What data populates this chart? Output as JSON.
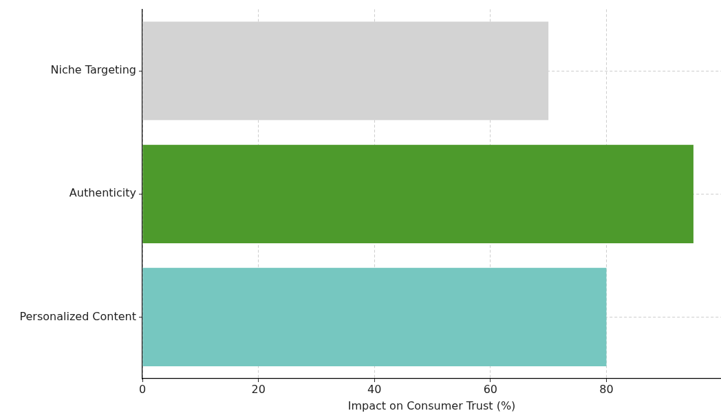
{
  "chart_data": {
    "type": "bar",
    "orientation": "horizontal",
    "xlabel": "Impact on Consumer Trust (%)",
    "categories": [
      "Niche Targeting",
      "Authenticity",
      "Personalized Content"
    ],
    "values": [
      70,
      95,
      80
    ],
    "colors": [
      "#d3d3d3",
      "#4d9a2c",
      "#76c7c0"
    ],
    "xlim": [
      0,
      99.75
    ],
    "xticks": [
      0,
      20,
      40,
      60,
      80
    ],
    "grid": true
  }
}
